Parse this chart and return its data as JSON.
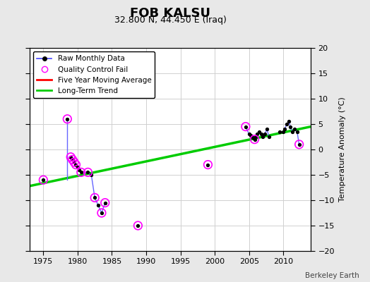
{
  "title": "FOB KALSU",
  "subtitle": "32.800 N, 44.450 E (Iraq)",
  "ylabel": "Temperature Anomaly (°C)",
  "watermark": "Berkeley Earth",
  "xlim": [
    1973,
    2014
  ],
  "ylim": [
    -20,
    20
  ],
  "xticks": [
    1975,
    1980,
    1985,
    1990,
    1995,
    2000,
    2005,
    2010
  ],
  "yticks": [
    -20,
    -15,
    -10,
    -5,
    0,
    5,
    10,
    15,
    20
  ],
  "bg_color": "#e8e8e8",
  "plot_bg_color": "#ffffff",
  "grid_color": "#d0d0d0",
  "raw_x": [
    1975.0,
    1978.5,
    1979.0,
    1979.25,
    1979.5,
    1979.75,
    1980.0,
    1980.25,
    1980.5,
    1981.5,
    1982.0,
    1982.5,
    1983.0,
    1983.5,
    1984.0,
    1988.8,
    1999.0,
    2004.5,
    2005.0,
    2005.2,
    2005.4,
    2005.6,
    2005.8,
    2006.0,
    2006.2,
    2006.5,
    2006.8,
    2007.0,
    2007.3,
    2007.6,
    2007.9,
    2009.5,
    2010.0,
    2010.2,
    2010.5,
    2010.8,
    2011.0,
    2011.3,
    2011.6,
    2012.0,
    2012.3
  ],
  "raw_y": [
    -6.0,
    6.0,
    -1.5,
    -2.0,
    -2.5,
    -3.0,
    -3.5,
    -4.0,
    -4.5,
    -4.5,
    -5.0,
    -9.5,
    -11.0,
    -12.5,
    -10.5,
    -15.0,
    -3.0,
    4.5,
    3.0,
    2.8,
    2.5,
    2.2,
    2.0,
    2.5,
    3.0,
    3.5,
    3.0,
    2.5,
    3.0,
    4.0,
    2.5,
    3.5,
    3.5,
    4.0,
    5.0,
    5.5,
    4.5,
    3.5,
    4.0,
    3.5,
    1.0
  ],
  "line_segments": [
    [
      1975.0,
      -6.0,
      1975.0,
      -6.0
    ],
    [
      1978.5,
      6.0,
      1978.5,
      -6.0
    ],
    [
      1979.0,
      -1.5,
      1979.25,
      -2.0
    ],
    [
      1979.25,
      -2.0,
      1979.5,
      -2.5
    ],
    [
      1979.5,
      -2.5,
      1979.75,
      -3.0
    ],
    [
      1979.75,
      -3.0,
      1980.0,
      -3.5
    ],
    [
      1980.0,
      -3.5,
      1980.25,
      -4.0
    ],
    [
      1980.25,
      -4.0,
      1980.5,
      -4.5
    ],
    [
      1980.5,
      -4.5,
      1981.5,
      -4.5
    ],
    [
      1981.5,
      -4.5,
      1982.0,
      -5.0
    ],
    [
      1982.0,
      -5.0,
      1982.5,
      -9.5
    ],
    [
      1982.5,
      -9.5,
      1983.0,
      -11.0
    ],
    [
      1983.0,
      -11.0,
      1983.5,
      -12.5
    ],
    [
      1983.5,
      -12.5,
      1984.0,
      -10.5
    ],
    [
      2004.5,
      4.5,
      2005.0,
      3.0
    ],
    [
      2005.0,
      3.0,
      2005.2,
      2.8
    ],
    [
      2005.2,
      2.8,
      2005.4,
      2.5
    ],
    [
      2005.4,
      2.5,
      2005.6,
      2.2
    ],
    [
      2005.6,
      2.2,
      2005.8,
      2.0
    ],
    [
      2005.8,
      2.0,
      2006.0,
      2.5
    ],
    [
      2006.0,
      2.5,
      2006.2,
      3.0
    ],
    [
      2006.2,
      3.0,
      2006.5,
      3.5
    ],
    [
      2006.5,
      3.5,
      2006.8,
      3.0
    ],
    [
      2006.8,
      3.0,
      2007.0,
      2.5
    ],
    [
      2007.0,
      2.5,
      2007.3,
      3.0
    ],
    [
      2007.3,
      3.0,
      2007.6,
      4.0
    ],
    [
      2007.6,
      4.0,
      2007.9,
      2.5
    ],
    [
      2009.5,
      3.5,
      2010.0,
      3.5
    ],
    [
      2010.0,
      3.5,
      2010.2,
      4.0
    ],
    [
      2010.2,
      4.0,
      2010.5,
      5.0
    ],
    [
      2010.5,
      5.0,
      2010.8,
      5.5
    ],
    [
      2010.8,
      5.5,
      2011.0,
      4.5
    ],
    [
      2011.0,
      4.5,
      2011.3,
      3.5
    ],
    [
      2011.3,
      3.5,
      2011.6,
      4.0
    ],
    [
      2011.6,
      4.0,
      2012.0,
      3.5
    ],
    [
      2012.0,
      3.5,
      2012.3,
      1.0
    ]
  ],
  "qc_fail_x": [
    1975.0,
    1978.5,
    1979.0,
    1979.25,
    1979.5,
    1979.75,
    1980.5,
    1981.5,
    1982.5,
    1983.5,
    1984.0,
    1988.8,
    1999.0,
    2004.5,
    2005.8,
    2012.3
  ],
  "qc_fail_y": [
    -6.0,
    6.0,
    -1.5,
    -2.0,
    -2.5,
    -3.0,
    -4.5,
    -4.5,
    -9.5,
    -12.5,
    -10.5,
    -15.0,
    -3.0,
    4.5,
    2.0,
    1.0
  ],
  "trend_x": [
    1973,
    2014
  ],
  "trend_y": [
    -7.2,
    4.5
  ],
  "legend_items": [
    {
      "label": "Raw Monthly Data",
      "color": "#0000ff",
      "type": "line_dot"
    },
    {
      "label": "Quality Control Fail",
      "color": "#ff00ff",
      "type": "circle_open"
    },
    {
      "label": "Five Year Moving Average",
      "color": "#ff0000",
      "type": "line"
    },
    {
      "label": "Long-Term Trend",
      "color": "#00cc00",
      "type": "line"
    }
  ]
}
